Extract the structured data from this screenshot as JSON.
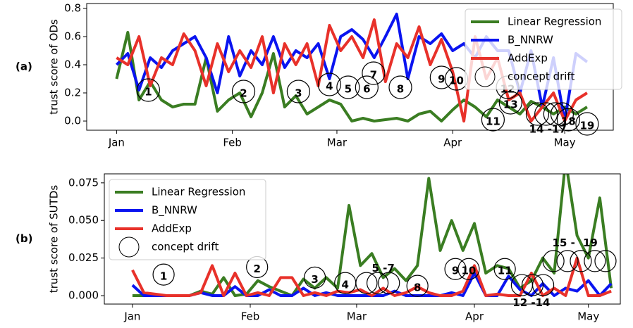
{
  "chart_data": [
    {
      "type": "line",
      "panel_label": "(a)",
      "ylabel": "trust score of ODs",
      "legend": "upper right",
      "x": [
        0,
        3,
        6,
        9,
        12,
        15,
        18,
        21,
        24,
        27,
        30,
        33,
        36,
        39,
        42,
        45,
        48,
        51,
        54,
        57,
        60,
        63,
        66,
        69,
        72,
        75,
        78,
        81,
        84,
        87,
        90,
        93,
        96,
        99,
        102,
        105,
        108,
        111,
        114,
        117,
        120,
        123,
        126
      ],
      "xlim": [
        -8,
        133
      ],
      "ylim": [
        -0.065,
        0.835
      ],
      "xticks": [
        {
          "value": 0,
          "label": "Jan"
        },
        {
          "value": 31,
          "label": "Feb"
        },
        {
          "value": 59,
          "label": "Mar"
        },
        {
          "value": 90,
          "label": "Apr"
        },
        {
          "value": 120,
          "label": "May"
        }
      ],
      "yticks": [
        {
          "value": 0,
          "label": "0.0"
        },
        {
          "value": 0.2,
          "label": "0.2"
        },
        {
          "value": 0.4,
          "label": "0.4"
        },
        {
          "value": 0.6,
          "label": "0.6"
        },
        {
          "value": 0.8,
          "label": "0.8"
        }
      ],
      "series": [
        {
          "name": "Linear Regression",
          "color": "#3a7d22",
          "values": [
            0.3,
            0.63,
            0.15,
            0.28,
            0.15,
            0.1,
            0.12,
            0.12,
            0.45,
            0.07,
            0.15,
            0.2,
            0.03,
            0.2,
            0.48,
            0.1,
            0.18,
            0.05,
            0.1,
            0.15,
            0.12,
            0.0,
            0.02,
            0.0,
            0.01,
            0.02,
            0.0,
            0.05,
            0.07,
            0.0,
            0.08,
            0.15,
            0.1,
            0.03,
            0.15,
            0.1,
            0.05,
            0.14,
            0.1,
            0.05,
            0.1,
            0.05,
            0.1
          ]
        },
        {
          "name": "B_NNRW",
          "color": "#0a14f0",
          "values": [
            0.4,
            0.48,
            0.22,
            0.45,
            0.38,
            0.5,
            0.55,
            0.6,
            0.45,
            0.2,
            0.6,
            0.32,
            0.5,
            0.4,
            0.6,
            0.38,
            0.5,
            0.45,
            0.55,
            0.3,
            0.6,
            0.65,
            0.58,
            0.45,
            0.6,
            0.76,
            0.3,
            0.6,
            0.55,
            0.62,
            0.5,
            0.55,
            0.45,
            0.6,
            0.5,
            0.5,
            0.2,
            0.5,
            0.1,
            0.45,
            0.0,
            0.48,
            0.42
          ]
        },
        {
          "name": "AddExp",
          "color": "#e8312a",
          "values": [
            0.45,
            0.4,
            0.6,
            0.25,
            0.45,
            0.4,
            0.62,
            0.5,
            0.25,
            0.55,
            0.35,
            0.5,
            0.38,
            0.6,
            0.2,
            0.55,
            0.4,
            0.55,
            0.25,
            0.68,
            0.5,
            0.6,
            0.45,
            0.72,
            0.28,
            0.55,
            0.45,
            0.67,
            0.4,
            0.58,
            0.35,
            0.0,
            0.6,
            0.3,
            0.45,
            0.15,
            0.2,
            0.0,
            0.1,
            0.2,
            0.0,
            0.15,
            0.2
          ]
        }
      ],
      "drift": {
        "name": "concept drift",
        "x": [
          8.5,
          34,
          48.7,
          57,
          62,
          67,
          68.8,
          76,
          87,
          91,
          100.8,
          104.7,
          105.5,
          112.7,
          115,
          117.4,
          119.3,
          121,
          126
        ],
        "y": [
          0.22,
          0.21,
          0.21,
          0.26,
          0.24,
          0.24,
          0.34,
          0.24,
          0.31,
          0.3,
          0.01,
          0.24,
          0.13,
          0.05,
          0.05,
          0.05,
          0.05,
          0.01,
          -0.02
        ],
        "labels": [
          "1",
          "2",
          "3",
          "4",
          "5",
          "6",
          "7",
          "8",
          "9",
          "10",
          "11",
          "12",
          "13",
          null,
          null,
          null,
          null,
          "18",
          "19"
        ]
      },
      "annotations": [
        {
          "text": "14 -17",
          "x": 115.5,
          "y": -0.06
        }
      ]
    },
    {
      "type": "line",
      "panel_label": "(b)",
      "ylabel": "trust score of SUTDs",
      "legend": "upper left",
      "x": [
        0,
        3,
        6,
        9,
        12,
        15,
        18,
        21,
        24,
        27,
        30,
        33,
        36,
        39,
        42,
        45,
        48,
        51,
        54,
        57,
        60,
        63,
        66,
        69,
        72,
        75,
        78,
        81,
        84,
        87,
        90,
        93,
        96,
        99,
        102,
        105,
        108,
        111,
        114,
        117,
        120,
        123,
        126
      ],
      "xlim": [
        -7.4,
        128.4
      ],
      "ylim": [
        -0.0056,
        0.081
      ],
      "xticks": [
        {
          "value": 0,
          "label": "Jan"
        },
        {
          "value": 31,
          "label": "Feb"
        },
        {
          "value": 59,
          "label": "Mar"
        },
        {
          "value": 90,
          "label": "Apr"
        },
        {
          "value": 120,
          "label": "May"
        }
      ],
      "yticks": [
        {
          "value": 0,
          "label": "0.000"
        },
        {
          "value": 0.025,
          "label": "0.025"
        },
        {
          "value": 0.05,
          "label": "0.050"
        },
        {
          "value": 0.075,
          "label": "0.075"
        }
      ],
      "series": [
        {
          "name": "Linear Regression",
          "color": "#3a7d22",
          "values": [
            0,
            0,
            0,
            0,
            0,
            0,
            0.003,
            0.001,
            0.012,
            0,
            0.001,
            0.01,
            0.006,
            0.003,
            0,
            0.011,
            0.005,
            0.012,
            0.005,
            0.06,
            0.02,
            0.028,
            0.012,
            0.018,
            0.01,
            0.02,
            0.078,
            0.03,
            0.05,
            0.03,
            0.048,
            0.015,
            0.02,
            0.018,
            0.005,
            0.01,
            0.025,
            0.015,
            0.09,
            0.04,
            0.025,
            0.065,
            0.005
          ]
        },
        {
          "name": "B_NNRW",
          "color": "#0a14f0",
          "values": [
            0.007,
            0,
            0,
            0,
            0,
            0,
            0.002,
            0,
            0,
            0.006,
            0,
            0,
            0.004,
            0,
            0,
            0.005,
            0,
            0.002,
            0,
            0,
            0,
            0,
            0,
            0.003,
            0,
            0,
            0,
            0,
            0.002,
            0,
            0.015,
            0,
            0,
            0.013,
            0.004,
            0,
            0.008,
            0,
            0.005,
            0.003,
            0.01,
            0,
            0.008
          ]
        },
        {
          "name": "AddExp",
          "color": "#e8312a",
          "values": [
            0.017,
            0.002,
            0.001,
            0,
            0,
            0,
            0.002,
            0.02,
            0,
            0.015,
            0,
            0.002,
            0,
            0.012,
            0.012,
            0,
            0.002,
            0,
            0.003,
            0.002,
            0.004,
            0,
            0.005,
            0,
            0.002,
            0.006,
            0.002,
            0,
            0,
            0.003,
            0.02,
            0,
            0.001,
            0,
            0,
            0.015,
            0,
            0.005,
            0,
            0.025,
            0,
            0,
            0.003
          ]
        }
      ],
      "drift": {
        "name": "concept drift",
        "x": [
          8.2,
          32.8,
          48,
          56,
          61.6,
          64.5,
          67.5,
          75,
          85,
          88.5,
          98,
          102.5,
          105.3,
          108.1,
          110.8,
          114.5,
          118,
          121.7,
          124.5
        ],
        "y": [
          0.014,
          0.019,
          0.012,
          0.0084,
          0.0084,
          0.0084,
          0.0084,
          0.0065,
          0.0177,
          0.0177,
          0.0177,
          0.007,
          0.007,
          0.007,
          0.023,
          0.023,
          0.023,
          0.023,
          0.023
        ],
        "labels": [
          "1",
          "2",
          "3",
          "4",
          null,
          null,
          null,
          "8",
          "9",
          "10",
          "11",
          null,
          null,
          null,
          null,
          null,
          null,
          null,
          null
        ]
      },
      "annotations": [
        {
          "text": "5 -7",
          "x": 66,
          "y": 0.018
        },
        {
          "text": "12 -14",
          "x": 105,
          "y": -0.005
        },
        {
          "text": "15 -",
          "x": 113.5,
          "y": 0.035
        },
        {
          "text": "19",
          "x": 120.5,
          "y": 0.035
        }
      ]
    }
  ]
}
